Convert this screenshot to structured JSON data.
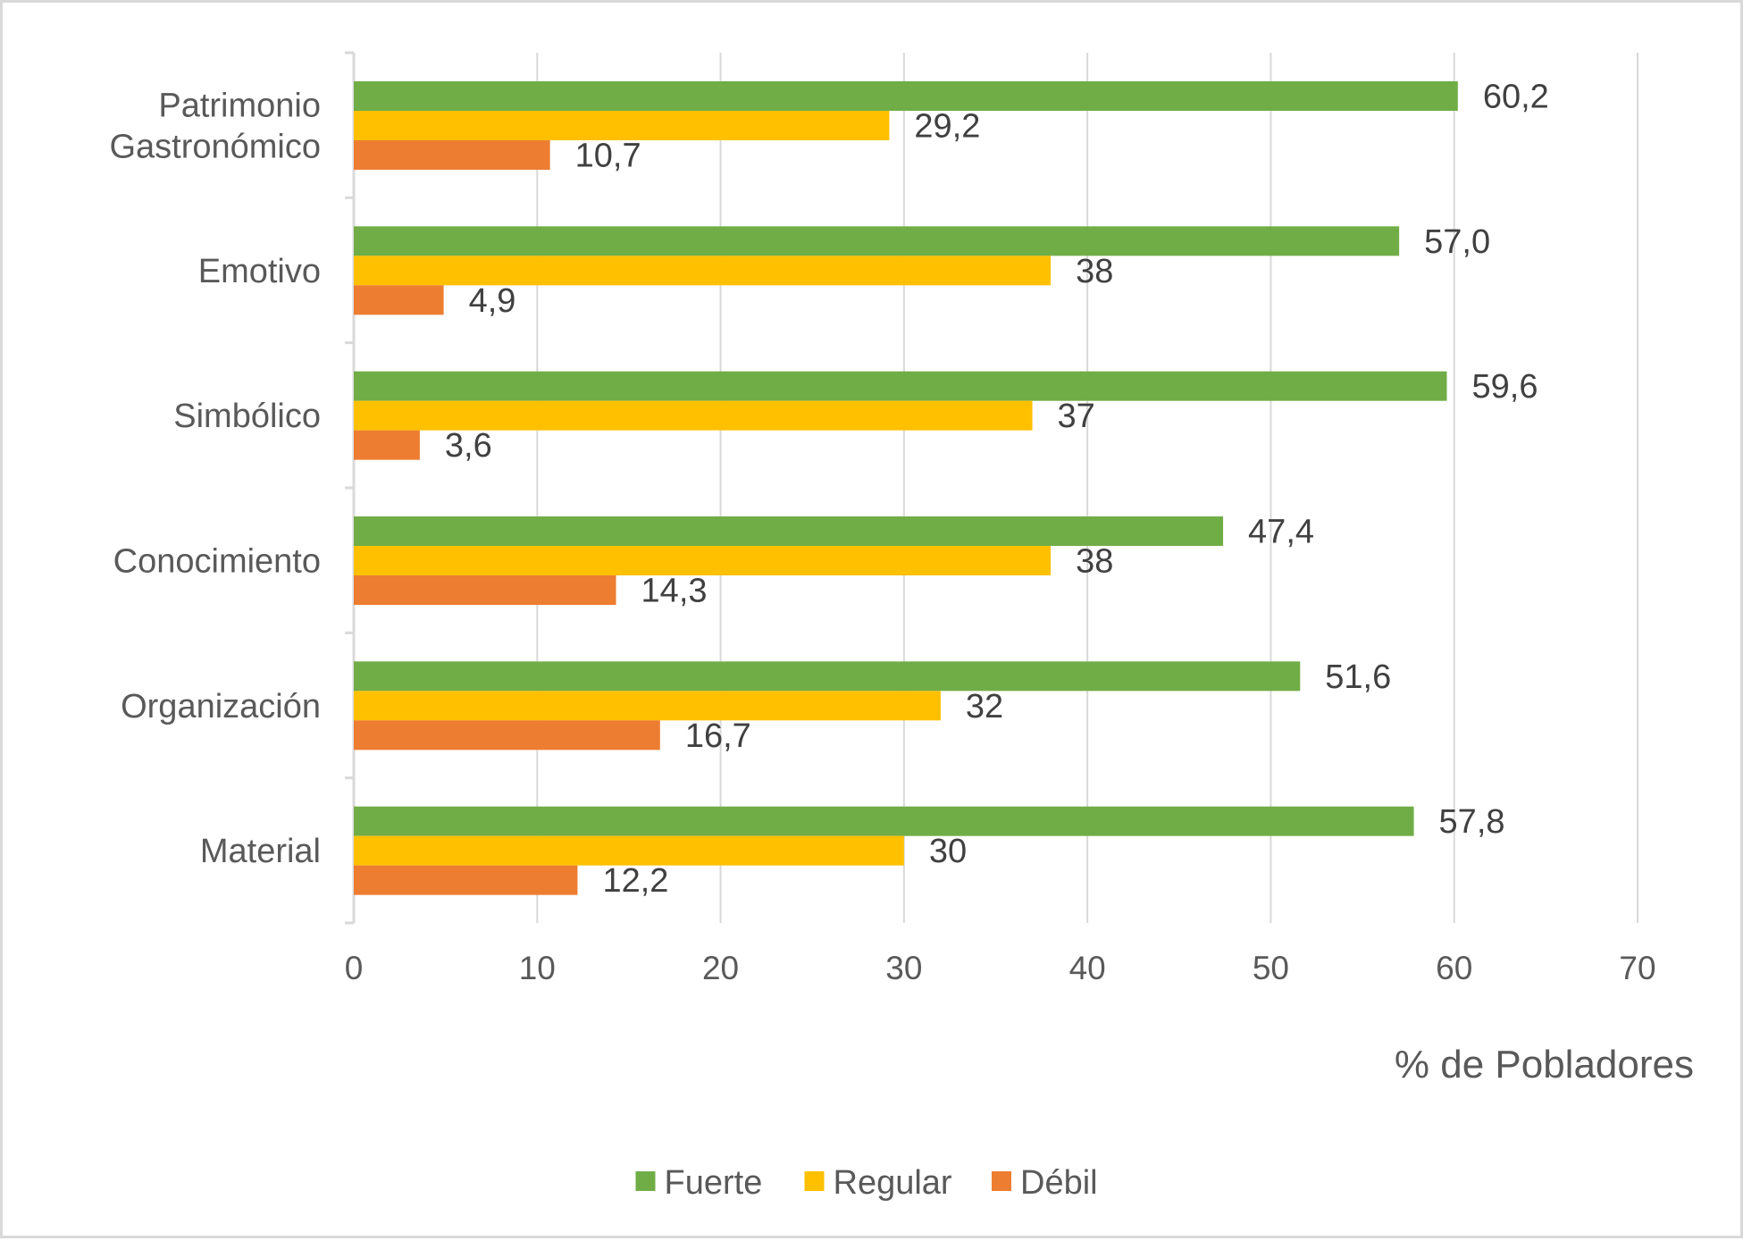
{
  "chart_data": {
    "type": "bar",
    "orientation": "horizontal",
    "title": "",
    "xlabel": "% de Pobladores",
    "ylabel": "",
    "xlim": [
      0,
      70
    ],
    "x_ticks": [
      "0",
      "10",
      "20",
      "30",
      "40",
      "50",
      "60",
      "70"
    ],
    "grid": true,
    "legend_position": "bottom",
    "categories": [
      [
        "Patrimonio",
        "Gastronómico"
      ],
      [
        "Emotivo"
      ],
      [
        "Simbólico"
      ],
      [
        "Conocimiento"
      ],
      [
        "Organización"
      ],
      [
        "Material"
      ]
    ],
    "series": [
      {
        "name": "Fuerte",
        "color": "#70ad47",
        "values": [
          60.2,
          57.0,
          59.6,
          47.4,
          51.6,
          57.8
        ],
        "labels": [
          "60,2",
          "57,0",
          "59,6",
          "47,4",
          "51,6",
          "57,8"
        ]
      },
      {
        "name": "Regular",
        "color": "#ffc000",
        "values": [
          29.2,
          38,
          37,
          38,
          32,
          30
        ],
        "labels": [
          "29,2",
          "38",
          "37",
          "38",
          "32",
          "30"
        ]
      },
      {
        "name": "Débil",
        "color": "#ed7d31",
        "values": [
          10.7,
          4.9,
          3.6,
          14.3,
          16.7,
          12.2
        ],
        "labels": [
          "10,7",
          "4,9",
          "3,6",
          "14,3",
          "16,7",
          "12,2"
        ]
      }
    ]
  }
}
